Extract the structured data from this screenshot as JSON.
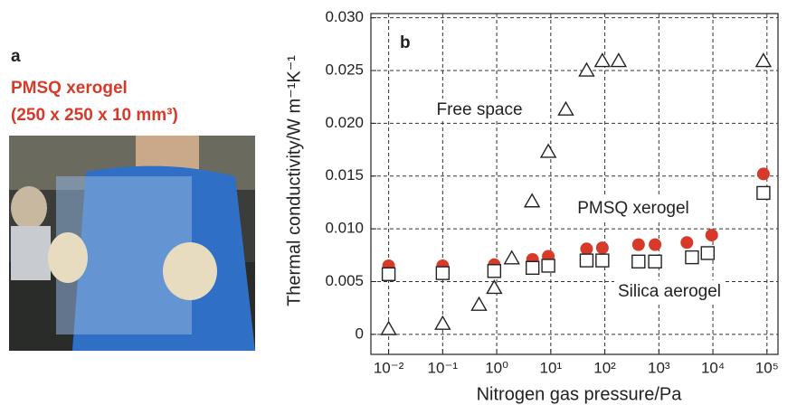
{
  "panel_a": {
    "label": "a",
    "title": "PMSQ xerogel",
    "subtitle": "(250 x 250 x 10 mm³)"
  },
  "chart_data": {
    "type": "scatter",
    "panel_label": "b",
    "xlabel": "Nitrogen gas pressure/Pa",
    "ylabel": "Thermal conductivity/W m⁻¹K⁻¹",
    "xscale": "log",
    "grid": true,
    "xlim": [
      0.0047,
      160000
    ],
    "ylim": [
      -0.0019,
      0.0304
    ],
    "xticks": [
      {
        "value": 0.01,
        "label": "10⁻²"
      },
      {
        "value": 0.1,
        "label": "10⁻¹"
      },
      {
        "value": 1,
        "label": "10⁰"
      },
      {
        "value": 10,
        "label": "10¹"
      },
      {
        "value": 100,
        "label": "10²"
      },
      {
        "value": 1000,
        "label": "10³"
      },
      {
        "value": 10000,
        "label": "10⁴"
      },
      {
        "value": 100000,
        "label": "10⁵"
      }
    ],
    "yticks": [
      0,
      0.005,
      {
        "value": 0.01,
        "label": "0.010"
      },
      0.015,
      {
        "value": 0.02,
        "label": "0.020"
      },
      0.025,
      {
        "value": 0.03,
        "label": "0.030"
      }
    ],
    "series": [
      {
        "name": "Free space",
        "color": "#222222",
        "marker": "triangle",
        "filled": false,
        "x": [
          0.01,
          0.1,
          0.47,
          0.9,
          1.9,
          4.5,
          9,
          19,
          46,
          90,
          180,
          86000
        ],
        "values": [
          0.0005,
          0.001,
          0.0028,
          0.0044,
          0.0072,
          0.0126,
          0.0173,
          0.0213,
          0.025,
          0.0259,
          0.0259,
          0.0259
        ]
      },
      {
        "name": "PMSQ xerogel",
        "color": "#d83a2a",
        "marker": "circle",
        "filled": true,
        "x": [
          0.01,
          0.1,
          0.9,
          4.6,
          9,
          46,
          90,
          420,
          850,
          3300,
          9500,
          86000
        ],
        "values": [
          0.0065,
          0.0065,
          0.0066,
          0.0071,
          0.0074,
          0.0081,
          0.0082,
          0.0085,
          0.0085,
          0.0087,
          0.0094,
          0.0152
        ]
      },
      {
        "name": "Silica aerogel",
        "color": "#222222",
        "marker": "square",
        "filled": false,
        "x": [
          0.01,
          0.1,
          0.9,
          4.6,
          9,
          46,
          90,
          420,
          850,
          4100,
          8000,
          86000
        ],
        "values": [
          0.0057,
          0.0058,
          0.006,
          0.0063,
          0.0065,
          0.007,
          0.007,
          0.0069,
          0.0069,
          0.0073,
          0.0077,
          0.0134
        ]
      }
    ]
  }
}
